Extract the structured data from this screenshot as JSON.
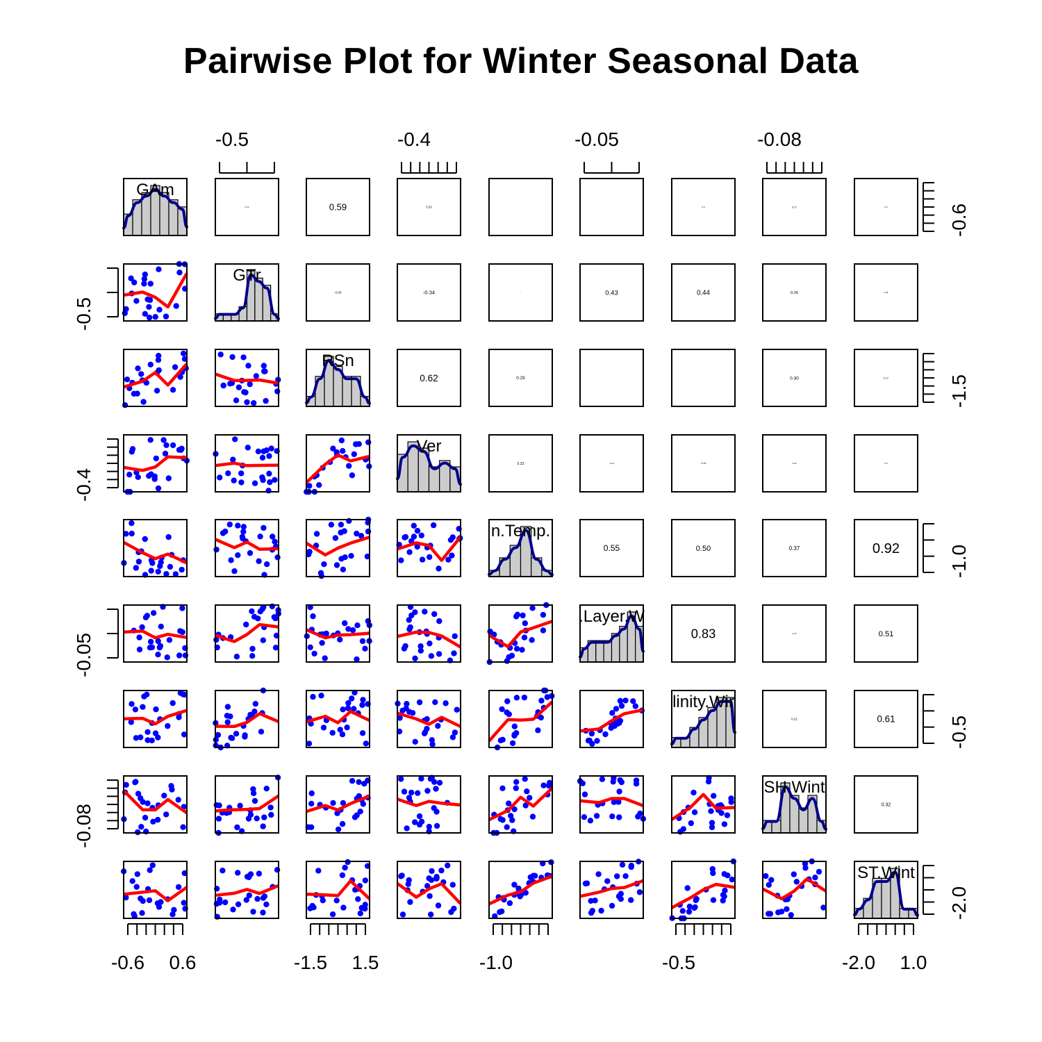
{
  "chart_data": {
    "type": "scatter-matrix",
    "title": "Pairwise Plot for Winter Seasonal Data",
    "variables": [
      {
        "label": "GAm",
        "hist": [
          3,
          5,
          6,
          7,
          6,
          5,
          4
        ]
      },
      {
        "label": "GTr",
        "hist": [
          1,
          1,
          1,
          2,
          7,
          6,
          5,
          1
        ]
      },
      {
        "label": "RSn",
        "hist": [
          1,
          3,
          5,
          4,
          3,
          3,
          1
        ]
      },
      {
        "label": "Ver",
        "hist": [
          6,
          8,
          7,
          4,
          5,
          4
        ]
      },
      {
        "label": "n.Temp.",
        "hist": [
          1,
          3,
          5,
          8,
          3,
          1
        ]
      },
      {
        "label": ".Layer.W",
        "hist": [
          2,
          3,
          3,
          3,
          4,
          5,
          7,
          5
        ]
      },
      {
        "label": "linity.Wir",
        "hist": [
          1,
          1,
          2,
          3,
          4,
          5,
          5
        ]
      },
      {
        "label": "SH.Wint",
        "hist": [
          1,
          1,
          4,
          3,
          2,
          3,
          1
        ]
      },
      {
        "label": "ST.Wint",
        "hist": [
          1,
          2,
          4,
          4,
          5,
          1,
          1
        ]
      }
    ],
    "correlations": [
      {
        "row": 1,
        "col": 2,
        "text": "0.14"
      },
      {
        "row": 1,
        "col": 3,
        "text": "0.59"
      },
      {
        "row": 1,
        "col": 4,
        "text": "0.20"
      },
      {
        "row": 1,
        "col": 6,
        "text": "-"
      },
      {
        "row": 1,
        "col": 7,
        "text": "0.0"
      },
      {
        "row": 1,
        "col": 8,
        "text": "0.17"
      },
      {
        "row": 1,
        "col": 9,
        "text": "0.0"
      },
      {
        "row": 2,
        "col": 3,
        "text": "-0.20"
      },
      {
        "row": 2,
        "col": 4,
        "text": "-0.34"
      },
      {
        "row": 2,
        "col": 5,
        "text": "--"
      },
      {
        "row": 2,
        "col": 6,
        "text": "0.43"
      },
      {
        "row": 2,
        "col": 7,
        "text": "0.44"
      },
      {
        "row": 2,
        "col": 8,
        "text": "0.26"
      },
      {
        "row": 2,
        "col": 9,
        "text": "0.08"
      },
      {
        "row": 3,
        "col": 4,
        "text": "0.62"
      },
      {
        "row": 3,
        "col": 5,
        "text": "0.29"
      },
      {
        "row": 3,
        "col": 6,
        "text": "-"
      },
      {
        "row": 3,
        "col": 7,
        "text": "-"
      },
      {
        "row": 3,
        "col": 8,
        "text": "0.30"
      },
      {
        "row": 3,
        "col": 9,
        "text": "0.17"
      },
      {
        "row": 4,
        "col": 5,
        "text": "0.23"
      },
      {
        "row": 4,
        "col": 6,
        "text": "-0.14"
      },
      {
        "row": 4,
        "col": 7,
        "text": "-0.16"
      },
      {
        "row": 4,
        "col": 8,
        "text": "0.03"
      },
      {
        "row": 4,
        "col": 9,
        "text": "0.0"
      },
      {
        "row": 5,
        "col": 6,
        "text": "0.55"
      },
      {
        "row": 5,
        "col": 7,
        "text": "0.50"
      },
      {
        "row": 5,
        "col": 8,
        "text": "0.37"
      },
      {
        "row": 5,
        "col": 9,
        "text": "0.92"
      },
      {
        "row": 6,
        "col": 7,
        "text": "0.83"
      },
      {
        "row": 6,
        "col": 8,
        "text": "0.10"
      },
      {
        "row": 6,
        "col": 9,
        "text": "0.51"
      },
      {
        "row": 7,
        "col": 8,
        "text": "0.21"
      },
      {
        "row": 7,
        "col": 9,
        "text": "0.61"
      },
      {
        "row": 8,
        "col": 9,
        "text": "0.32"
      }
    ],
    "axis_tick_labels": {
      "top": [
        {
          "col": 2,
          "label": "-0.5"
        },
        {
          "col": 4,
          "label": "-0.4"
        },
        {
          "col": 6,
          "label": "-0.05"
        },
        {
          "col": 8,
          "label": "-0.08"
        }
      ],
      "bottom": [
        {
          "col": 1,
          "labels": [
            "-0.6",
            "0.6"
          ]
        },
        {
          "col": 3,
          "labels": [
            "-1.5",
            "1.5"
          ]
        },
        {
          "col": 5,
          "labels": [
            "-1.0"
          ]
        },
        {
          "col": 7,
          "labels": [
            "-0.5"
          ]
        },
        {
          "col": 9,
          "labels": [
            "-2.0",
            "1.0"
          ]
        }
      ],
      "left": [
        {
          "row": 2,
          "label": "-0.5"
        },
        {
          "row": 4,
          "label": "-0.4"
        },
        {
          "row": 6,
          "label": "-0.05"
        },
        {
          "row": 8,
          "label": "-0.08"
        }
      ],
      "right": [
        {
          "row": 1,
          "label": "-0.6"
        },
        {
          "row": 3,
          "label": "-1.5"
        },
        {
          "row": 5,
          "label": "-1.0"
        },
        {
          "row": 7,
          "label": "-0.5"
        },
        {
          "row": 9,
          "label": "-2.0"
        }
      ]
    },
    "colors": {
      "points": "#0000ff",
      "smooth": "#ff0000",
      "density": "#00008b",
      "hist_fill": "#cccccc",
      "frame": "#000000"
    }
  }
}
